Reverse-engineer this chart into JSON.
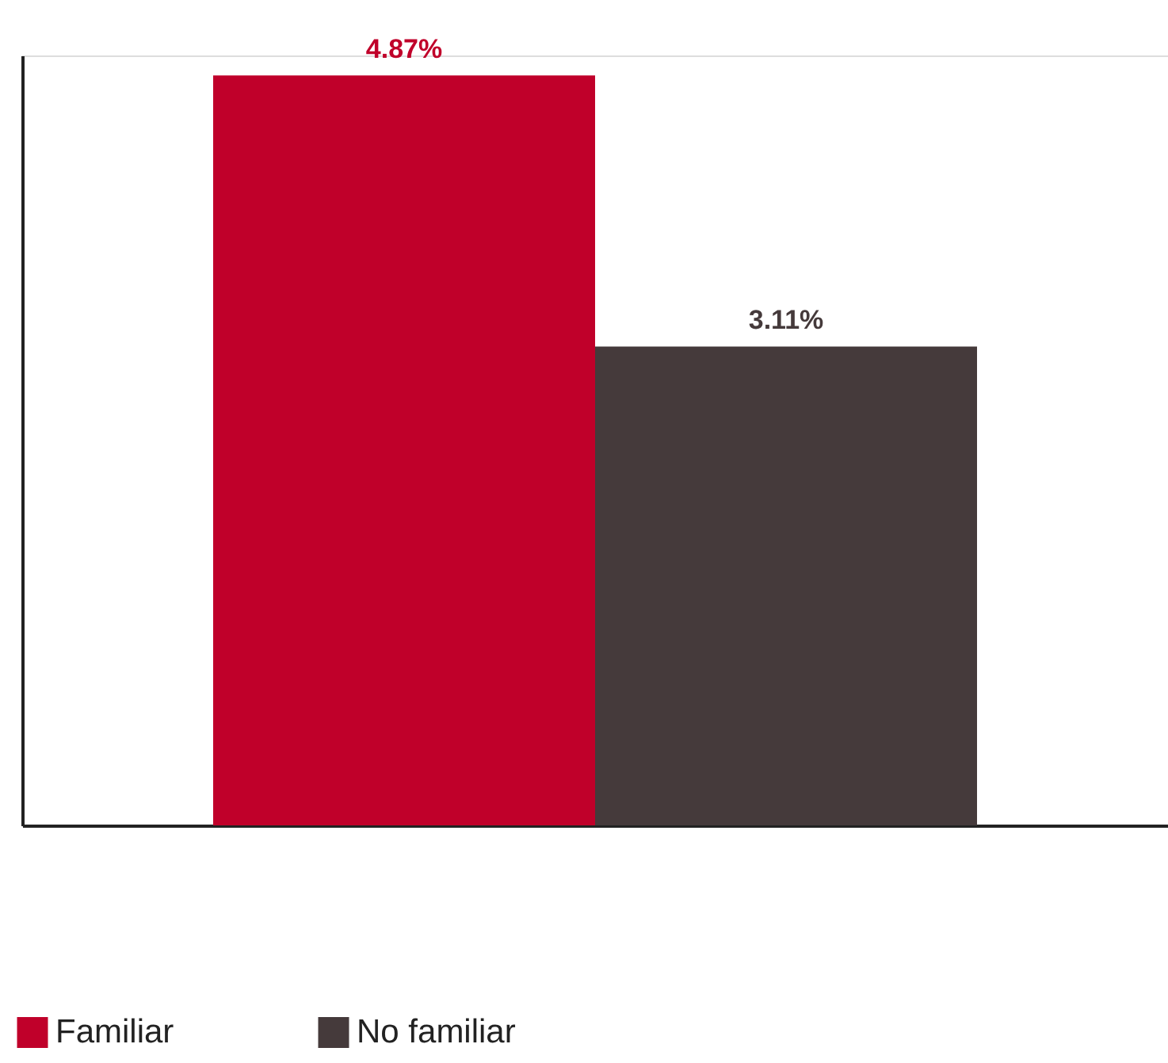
{
  "chart_data": {
    "type": "bar",
    "categories": [
      null
    ],
    "series": [
      {
        "name": "Familiar",
        "color": "#c0002a",
        "values": [
          4.87
        ],
        "value_labels": [
          "4.87%"
        ]
      },
      {
        "name": "No familiar",
        "color": "#453a3b",
        "values": [
          3.11
        ],
        "value_labels": [
          "3.11%"
        ]
      }
    ],
    "ylim": [
      0,
      5
    ],
    "tick_labels": false,
    "grid": false,
    "legend": "bottom left"
  }
}
